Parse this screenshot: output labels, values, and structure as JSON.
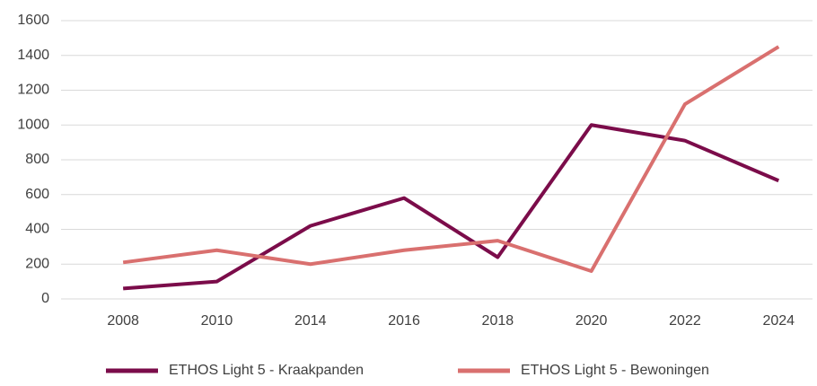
{
  "chart_data": {
    "type": "line",
    "categories": [
      "2008",
      "2010",
      "2014",
      "2016",
      "2018",
      "2020",
      "2022",
      "2024"
    ],
    "series": [
      {
        "name": "ETHOS Light 5 - Kraakpanden",
        "color": "#7b0c4a",
        "values": [
          60,
          100,
          420,
          580,
          240,
          1000,
          910,
          680
        ]
      },
      {
        "name": "ETHOS Light 5 - Bewoningen",
        "color": "#d9706f",
        "values": [
          210,
          280,
          200,
          280,
          335,
          160,
          1120,
          1450
        ]
      }
    ],
    "ylim": [
      0,
      1600
    ],
    "yticks": [
      0,
      200,
      400,
      600,
      800,
      1000,
      1200,
      1400,
      1600
    ],
    "grid": true,
    "legend": "bottom"
  }
}
